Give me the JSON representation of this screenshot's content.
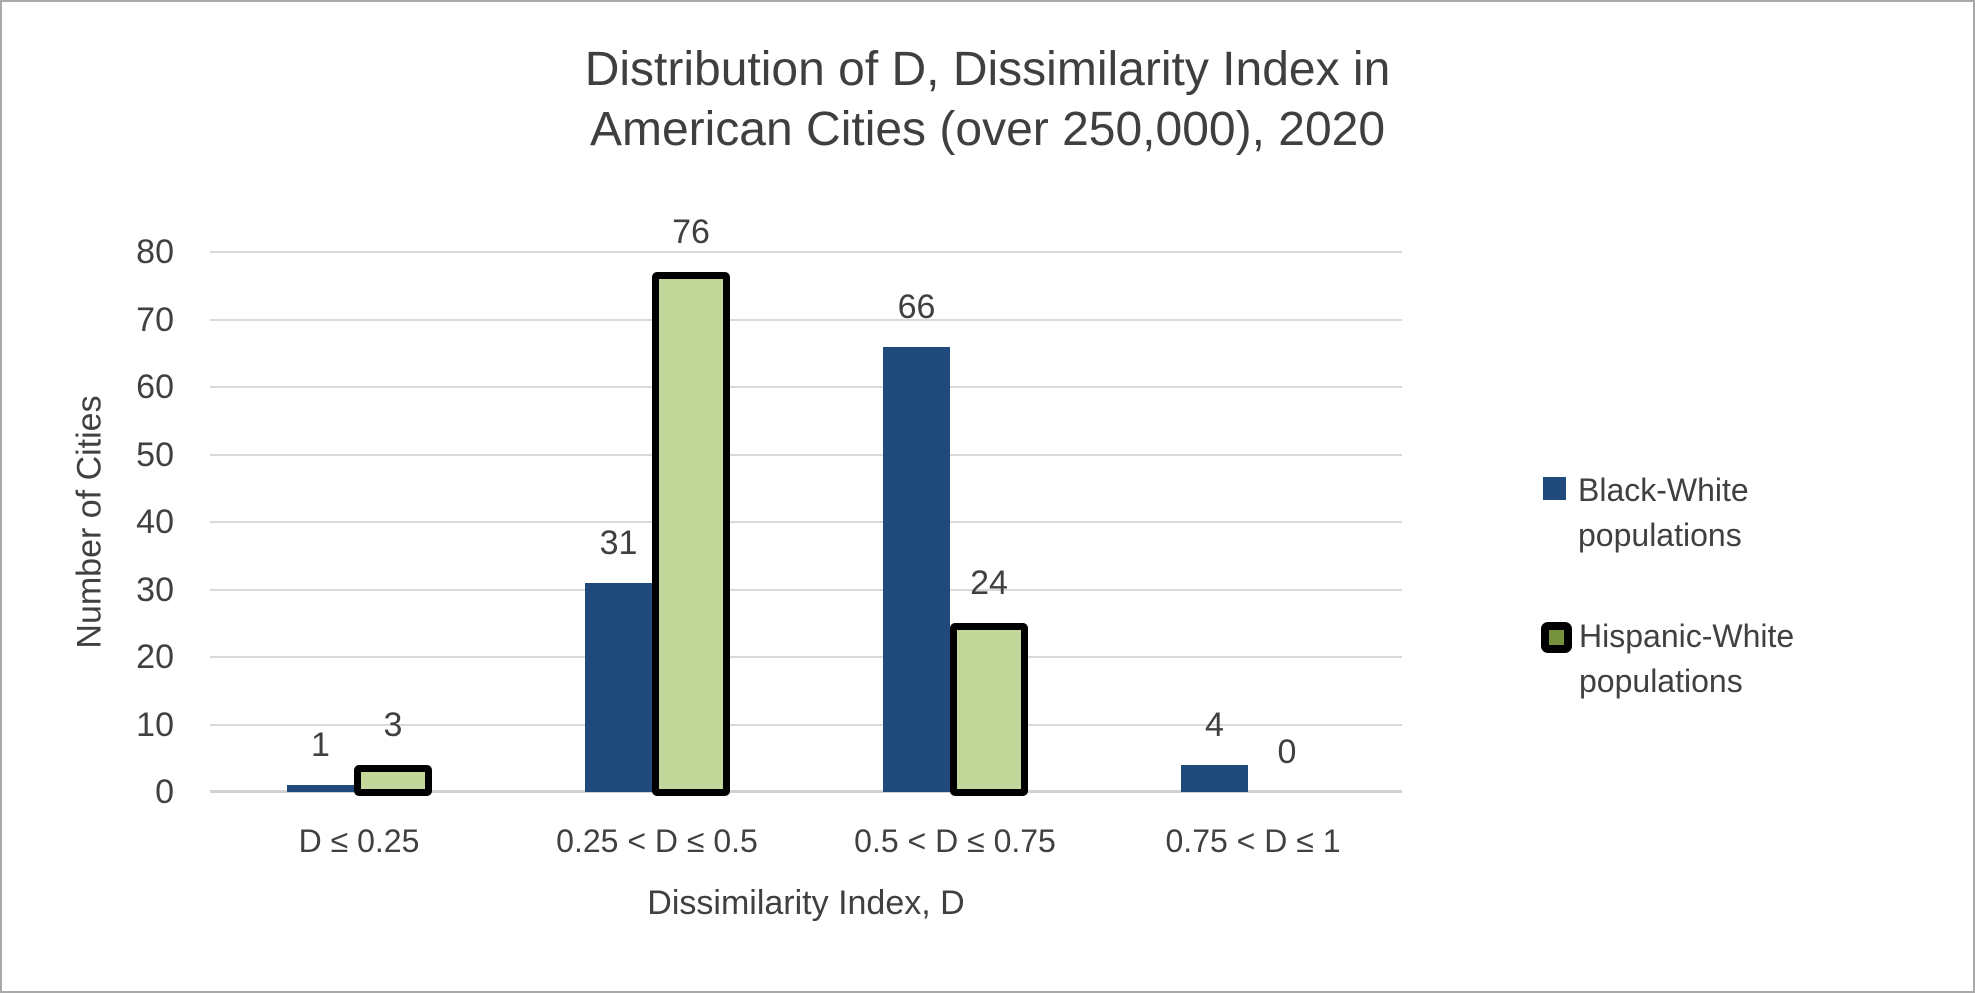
{
  "title": {
    "line1": "Distribution of D, Dissimilarity Index in",
    "line2": "American Cities (over 250,000), 2020"
  },
  "chart_data": {
    "type": "bar",
    "title": "Distribution of D, Dissimilarity Index in American Cities (over 250,000), 2020",
    "categories": [
      "D ≤ 0.25",
      "0.25 < D ≤ 0.5",
      "0.5 < D ≤ 0.75",
      "0.75 < D ≤ 1"
    ],
    "series": [
      {
        "name": "Black-White populations",
        "values": [
          1,
          31,
          66,
          4
        ],
        "color": "#1f4a7b",
        "border_color": null
      },
      {
        "name": "Hispanic-White populations",
        "values": [
          3,
          76,
          24,
          0
        ],
        "color": "#c4d79b",
        "border_color": "#000000"
      }
    ],
    "xlabel": "Dissimilarity Index, D",
    "ylabel": "Number of Cities",
    "ylim": [
      0,
      80
    ],
    "ytick_step": 10,
    "grid": true,
    "data_labels": true,
    "legend_position": "right"
  },
  "colors": {
    "grid": "#d9d9d9",
    "axis_text": "#404040",
    "title_text": "#3f3f3f",
    "legend_green_center": "#76923c",
    "frame_border": "#a9a9a9"
  }
}
